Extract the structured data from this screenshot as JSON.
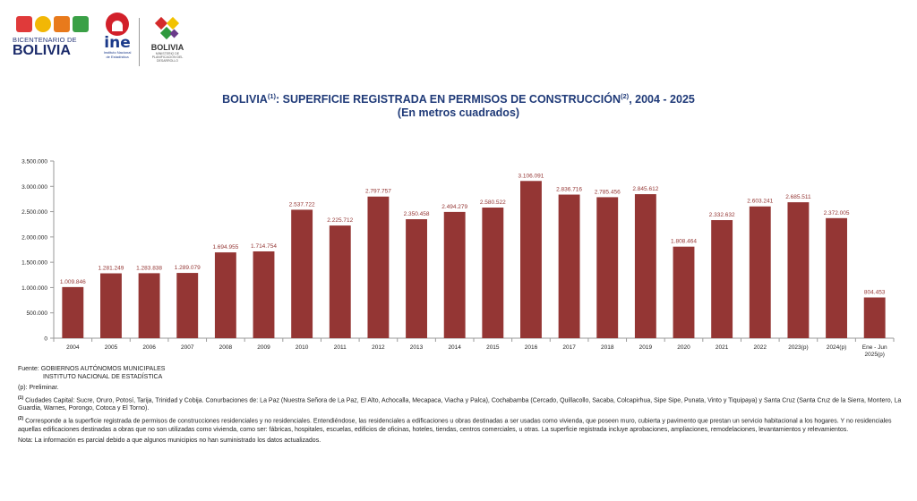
{
  "logos": {
    "bicentenario_line1": "BICENTENARIO DE",
    "bicentenario_line2": "BOLIVIA",
    "ine_word": "ine",
    "ine_small1": "Instituto Nacional",
    "ine_small2": "de Estadística",
    "bolivia_word": "BOLIVIA",
    "bolivia_small": "MINISTERIO DE PLANIFICACIÓN DEL DESARROLLO"
  },
  "title": {
    "line1_a": "BOLIVIA",
    "line1_sup1": "(1)",
    "line1_b": ": SUPERFICIE REGISTRADA EN PERMISOS DE CONSTRUCCIÓN",
    "line1_sup2": "(2)",
    "line1_c": ", 2004 - 2025",
    "line2": "(En metros cuadrados)"
  },
  "chart_data": {
    "type": "bar",
    "categories": [
      "2004",
      "2005",
      "2006",
      "2007",
      "2008",
      "2009",
      "2010",
      "2011",
      "2012",
      "2013",
      "2014",
      "2015",
      "2016",
      "2017",
      "2018",
      "2019",
      "2020",
      "2021",
      "2022",
      "2023(p)",
      "2024(p)",
      "Ene - Jun\n2025(p)"
    ],
    "values": [
      1009846,
      1281249,
      1283838,
      1289079,
      1694955,
      1714754,
      2537722,
      2225712,
      2797757,
      2350458,
      2494279,
      2580522,
      3106091,
      2836716,
      2785456,
      2845612,
      1808464,
      2332632,
      2603241,
      2685511,
      2372005,
      804453
    ],
    "value_labels": [
      "1.009.846",
      "1.281.249",
      "1.283.838",
      "1.289.079",
      "1.694.955",
      "1.714.754",
      "2.537.722",
      "2.225.712",
      "2.797.757",
      "2.350.458",
      "2.494.279",
      "2.580.522",
      "3.106.091",
      "2.836.716",
      "2.785.456",
      "2.845.612",
      "1.808.464",
      "2.332.632",
      "2.603.241",
      "2.685.511",
      "2.372.005",
      "804.453"
    ],
    "y_ticks": [
      0,
      500000,
      1000000,
      1500000,
      2000000,
      2500000,
      3000000,
      3500000
    ],
    "y_tick_labels": [
      "0",
      "500.000",
      "1.000.000",
      "1.500.000",
      "2.000.000",
      "2.500.000",
      "3.000.000",
      "3.500.000"
    ],
    "ylim": [
      0,
      3500000
    ],
    "grid": false,
    "bar_color": "#943634",
    "label_color": "#943634"
  },
  "footnotes": {
    "fuente_label": "Fuente:",
    "fuente_1": "GOBIERNOS AUTÓNOMOS MUNICIPALES",
    "fuente_2": "INSTITUTO NACIONAL DE ESTADÍSTICA",
    "preliminar": "(p): Preliminar.",
    "note1_sup": "(1)",
    "note1": " Ciudades Capital: Sucre, Oruro, Potosí, Tarija, Trinidad y Cobija. Conurbaciones de: La Paz (Nuestra Señora de La Paz, El Alto, Achocalla, Mecapaca, Viacha y Palca), Cochabamba (Cercado, Quillacollo, Sacaba, Colcapirhua, Sipe Sipe, Punata, Vinto y Tiquipaya) y Santa Cruz (Santa Cruz de la Sierra, Montero, La Guardia, Warnes, Porongo, Cotoca y El Torno).",
    "note2_sup": "(2)",
    "note2": " Corresponde a la superficie registrada de permisos de construcciones residenciales y no residenciales. Entendiéndose, las residenciales a edificaciones u obras destinadas a ser usadas como vivienda, que poseen muro, cubierta y pavimento que prestan un servicio habitacional a los hogares. Y no residenciales aquellas edificaciones destinadas a obras que no son utilizadas como vivienda, como ser: fábricas, hospitales, escuelas, edificios de oficinas, hoteles, tiendas, centros comerciales, u otras. La superficie registrada incluye aprobaciones, ampliaciones, remodelaciones, levantamientos y relevamientos.",
    "nota": "Nota: La información es parcial debido a que algunos municipios no han suministrado los datos actualizados."
  }
}
